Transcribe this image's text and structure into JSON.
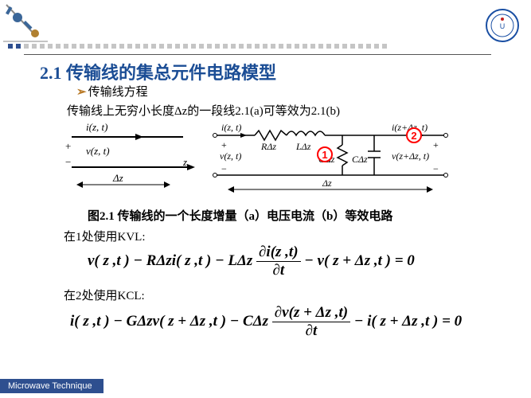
{
  "brand": {
    "seal_stroke": "#1a4fa3",
    "seal_fill": "#ffffff",
    "seal_center": "#c02020",
    "corner_body": "#3b6698",
    "corner_accent": "#b08030"
  },
  "dots": {
    "count": 48,
    "color_active": "#2e4f8f",
    "color_inactive": "#c5c5c5",
    "active_ratio": 0.1
  },
  "colors": {
    "title": "#1b4d95",
    "bullet": "#b97a28",
    "callout": "#ff0000",
    "text": "#000000",
    "footer_bg": "#2e4f8f"
  },
  "title": "2.1 传输线的集总元件电路模型",
  "bullet": "传输线方程",
  "subtext": "传输线上无穷小长度Δz的一段线2.1(a)可等效为2.1(b)",
  "fig": {
    "a": {
      "i_label": "i(z, t)",
      "v_label": "v(z, t)",
      "z_label": "z",
      "dz_label": "Δz"
    },
    "b": {
      "i_left": "i(z, t)",
      "i_right": "i(z+Δz, t)",
      "v_left": "v(z, t)",
      "v_right": "v(z+Δz, t)",
      "R": "RΔz",
      "L": "LΔz",
      "G": "GΔz",
      "C": "CΔz",
      "dz": "Δz"
    },
    "callout1": "1",
    "callout2": "2"
  },
  "caption": "图2.1 传输线的一个长度增量（a）电压电流（b）等效电路",
  "kvl_label": "在1处使用KVL:",
  "kcl_label": "在2处使用KCL:",
  "eq1": {
    "lhs": "v( z ,t ) − RΔzi( z ,t ) − LΔz",
    "frac_n": "∂i(z ,t)",
    "frac_d": "∂t",
    "rhs": "− v( z + Δz ,t ) = 0"
  },
  "eq2": {
    "lhs": "i( z ,t ) − GΔzv( z + Δz ,t ) − CΔz",
    "frac_n": "∂v(z + Δz ,t)",
    "frac_d": "∂t",
    "rhs": "− i( z + Δz ,t ) = 0"
  },
  "footer": "Microwave Technique"
}
